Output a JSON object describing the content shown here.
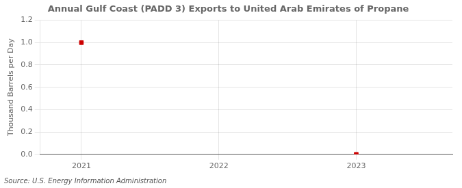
{
  "chart_data": {
    "type": "scatter",
    "title": "Annual Gulf Coast (PADD 3) Exports to United Arab Emirates of Propane",
    "ylabel": "Thousand Barrels per Day",
    "source": "Source: U.S. Energy Information Administration",
    "x": [
      2021,
      2023
    ],
    "values": [
      1.0,
      0.0
    ],
    "color": "#cc0000",
    "marker": "square",
    "xlim": [
      2020.7,
      2023.7
    ],
    "xticks": [
      2021,
      2022,
      2023
    ],
    "ylim": [
      0.0,
      1.2
    ],
    "yticks": [
      {
        "value": 0.0,
        "label": "0.0"
      },
      0.2,
      0.4,
      0.6,
      0.8,
      {
        "value": 1.0,
        "label": "1.0"
      },
      1.2
    ],
    "grid": true
  }
}
